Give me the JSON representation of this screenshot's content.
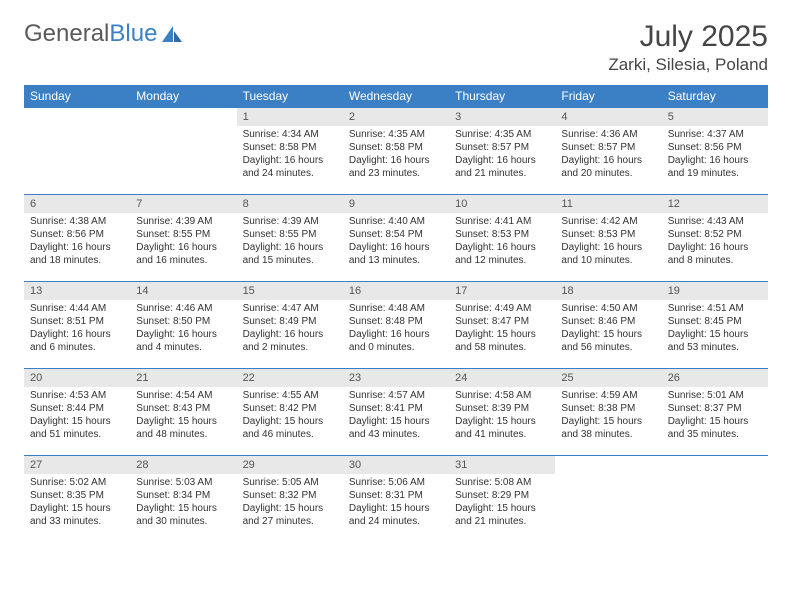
{
  "logo": {
    "text1": "General",
    "text2": "Blue"
  },
  "title": "July 2025",
  "location": "Zarki, Silesia, Poland",
  "colors": {
    "header_bg": "#3b7fc4",
    "header_fg": "#ffffff",
    "daynum_bg": "#e8e8e8",
    "daynum_fg": "#555555",
    "text": "#333333",
    "rule": "#3b7fc4"
  },
  "weekdays": [
    "Sunday",
    "Monday",
    "Tuesday",
    "Wednesday",
    "Thursday",
    "Friday",
    "Saturday"
  ],
  "weeks": [
    [
      null,
      null,
      {
        "n": "1",
        "sr": "4:34 AM",
        "ss": "8:58 PM",
        "dl": "16 hours and 24 minutes."
      },
      {
        "n": "2",
        "sr": "4:35 AM",
        "ss": "8:58 PM",
        "dl": "16 hours and 23 minutes."
      },
      {
        "n": "3",
        "sr": "4:35 AM",
        "ss": "8:57 PM",
        "dl": "16 hours and 21 minutes."
      },
      {
        "n": "4",
        "sr": "4:36 AM",
        "ss": "8:57 PM",
        "dl": "16 hours and 20 minutes."
      },
      {
        "n": "5",
        "sr": "4:37 AM",
        "ss": "8:56 PM",
        "dl": "16 hours and 19 minutes."
      }
    ],
    [
      {
        "n": "6",
        "sr": "4:38 AM",
        "ss": "8:56 PM",
        "dl": "16 hours and 18 minutes."
      },
      {
        "n": "7",
        "sr": "4:39 AM",
        "ss": "8:55 PM",
        "dl": "16 hours and 16 minutes."
      },
      {
        "n": "8",
        "sr": "4:39 AM",
        "ss": "8:55 PM",
        "dl": "16 hours and 15 minutes."
      },
      {
        "n": "9",
        "sr": "4:40 AM",
        "ss": "8:54 PM",
        "dl": "16 hours and 13 minutes."
      },
      {
        "n": "10",
        "sr": "4:41 AM",
        "ss": "8:53 PM",
        "dl": "16 hours and 12 minutes."
      },
      {
        "n": "11",
        "sr": "4:42 AM",
        "ss": "8:53 PM",
        "dl": "16 hours and 10 minutes."
      },
      {
        "n": "12",
        "sr": "4:43 AM",
        "ss": "8:52 PM",
        "dl": "16 hours and 8 minutes."
      }
    ],
    [
      {
        "n": "13",
        "sr": "4:44 AM",
        "ss": "8:51 PM",
        "dl": "16 hours and 6 minutes."
      },
      {
        "n": "14",
        "sr": "4:46 AM",
        "ss": "8:50 PM",
        "dl": "16 hours and 4 minutes."
      },
      {
        "n": "15",
        "sr": "4:47 AM",
        "ss": "8:49 PM",
        "dl": "16 hours and 2 minutes."
      },
      {
        "n": "16",
        "sr": "4:48 AM",
        "ss": "8:48 PM",
        "dl": "16 hours and 0 minutes."
      },
      {
        "n": "17",
        "sr": "4:49 AM",
        "ss": "8:47 PM",
        "dl": "15 hours and 58 minutes."
      },
      {
        "n": "18",
        "sr": "4:50 AM",
        "ss": "8:46 PM",
        "dl": "15 hours and 56 minutes."
      },
      {
        "n": "19",
        "sr": "4:51 AM",
        "ss": "8:45 PM",
        "dl": "15 hours and 53 minutes."
      }
    ],
    [
      {
        "n": "20",
        "sr": "4:53 AM",
        "ss": "8:44 PM",
        "dl": "15 hours and 51 minutes."
      },
      {
        "n": "21",
        "sr": "4:54 AM",
        "ss": "8:43 PM",
        "dl": "15 hours and 48 minutes."
      },
      {
        "n": "22",
        "sr": "4:55 AM",
        "ss": "8:42 PM",
        "dl": "15 hours and 46 minutes."
      },
      {
        "n": "23",
        "sr": "4:57 AM",
        "ss": "8:41 PM",
        "dl": "15 hours and 43 minutes."
      },
      {
        "n": "24",
        "sr": "4:58 AM",
        "ss": "8:39 PM",
        "dl": "15 hours and 41 minutes."
      },
      {
        "n": "25",
        "sr": "4:59 AM",
        "ss": "8:38 PM",
        "dl": "15 hours and 38 minutes."
      },
      {
        "n": "26",
        "sr": "5:01 AM",
        "ss": "8:37 PM",
        "dl": "15 hours and 35 minutes."
      }
    ],
    [
      {
        "n": "27",
        "sr": "5:02 AM",
        "ss": "8:35 PM",
        "dl": "15 hours and 33 minutes."
      },
      {
        "n": "28",
        "sr": "5:03 AM",
        "ss": "8:34 PM",
        "dl": "15 hours and 30 minutes."
      },
      {
        "n": "29",
        "sr": "5:05 AM",
        "ss": "8:32 PM",
        "dl": "15 hours and 27 minutes."
      },
      {
        "n": "30",
        "sr": "5:06 AM",
        "ss": "8:31 PM",
        "dl": "15 hours and 24 minutes."
      },
      {
        "n": "31",
        "sr": "5:08 AM",
        "ss": "8:29 PM",
        "dl": "15 hours and 21 minutes."
      },
      null,
      null
    ]
  ],
  "labels": {
    "sunrise": "Sunrise:",
    "sunset": "Sunset:",
    "daylight": "Daylight:"
  }
}
